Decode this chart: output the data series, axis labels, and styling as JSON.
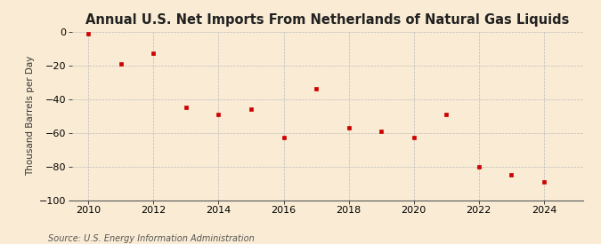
{
  "title": "Annual U.S. Net Imports From Netherlands of Natural Gas Liquids",
  "ylabel": "Thousand Barrels per Day",
  "source": "Source: U.S. Energy Information Administration",
  "background_color": "#faecd4",
  "years": [
    2010,
    2011,
    2012,
    2013,
    2014,
    2015,
    2016,
    2017,
    2018,
    2019,
    2020,
    2021,
    2022,
    2023,
    2024
  ],
  "values": [
    -1,
    -19,
    -13,
    -45,
    -49,
    -46,
    -63,
    -34,
    -57,
    -59,
    -63,
    -49,
    -80,
    -85,
    -89
  ],
  "ylim": [
    -100,
    0
  ],
  "yticks": [
    0,
    -20,
    -40,
    -60,
    -80,
    -100
  ],
  "xlim": [
    2009.5,
    2025.2
  ],
  "xticks": [
    2010,
    2012,
    2014,
    2016,
    2018,
    2020,
    2022,
    2024
  ],
  "marker_color": "#cc0000",
  "marker": "s",
  "marker_size": 3.5,
  "grid_color": "#bbbbbb",
  "title_fontsize": 10.5,
  "label_fontsize": 7.5,
  "tick_fontsize": 8,
  "source_fontsize": 7
}
